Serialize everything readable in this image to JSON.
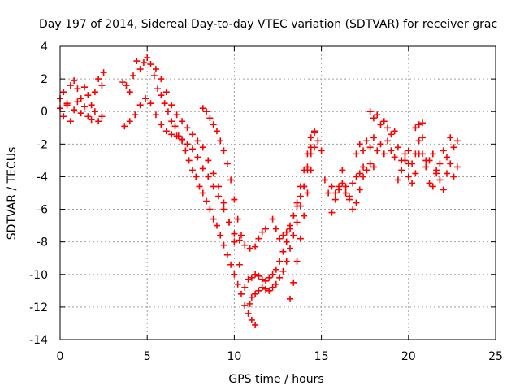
{
  "chart_data": {
    "type": "scatter",
    "title": "Day 197 of 2014, Sidereal Day-to-day VTEC variation (SDTVAR) for receiver grac",
    "xlabel": "GPS time / hours",
    "ylabel": "SDTVAR / TECUs",
    "xlim": [
      0,
      25
    ],
    "ylim": [
      -14,
      4
    ],
    "xticks": [
      0,
      5,
      10,
      15,
      20,
      25
    ],
    "yticks": [
      -14,
      -12,
      -10,
      -8,
      -6,
      -4,
      -2,
      0,
      2,
      4
    ],
    "grid": true,
    "legend": "none",
    "marker": "plus",
    "color": "#ff0000",
    "series": [
      {
        "x": [
          0.0,
          0.2,
          0.4,
          0.6,
          0.8,
          1.0,
          1.2,
          1.4,
          1.6,
          1.8,
          2.0,
          2.2,
          2.4,
          2.5
        ],
        "y": [
          0.8,
          1.2,
          0.5,
          1.6,
          1.9,
          1.4,
          0.8,
          1.5,
          1.0,
          0.4,
          1.2,
          2.0,
          1.6,
          2.4
        ]
      },
      {
        "x": [
          0.0,
          0.2,
          0.4,
          0.6,
          0.8,
          1.0,
          1.2,
          1.4,
          1.6,
          1.8,
          2.0,
          2.2,
          2.4
        ],
        "y": [
          0.2,
          -0.3,
          0.4,
          -0.6,
          0.1,
          0.6,
          -0.1,
          0.3,
          -0.3,
          -0.5,
          0.0,
          -0.6,
          -0.3
        ]
      },
      {
        "x": [
          3.6,
          3.8,
          4.0,
          4.2,
          4.4,
          4.6,
          4.8,
          5.0,
          5.2,
          5.4,
          5.6,
          5.8,
          6.0,
          6.2,
          6.4,
          6.6,
          6.8,
          7.0,
          7.2,
          7.4,
          7.6,
          7.8,
          8.0,
          8.2,
          8.4,
          8.6,
          8.8,
          9.0,
          9.2,
          9.4,
          9.6,
          9.8,
          10.0,
          10.2,
          10.4,
          10.6,
          10.8,
          11.0,
          11.2
        ],
        "y": [
          1.8,
          1.6,
          1.2,
          2.2,
          3.1,
          2.6,
          3.0,
          3.3,
          2.9,
          2.2,
          1.4,
          1.0,
          0.5,
          0.0,
          -0.6,
          -0.9,
          -1.5,
          -1.8,
          -2.4,
          -3.0,
          -3.6,
          -4.0,
          -4.6,
          -5.0,
          -5.5,
          -6.0,
          -6.6,
          -7.0,
          -7.6,
          -8.2,
          -8.8,
          -9.4,
          -10.0,
          -10.6,
          -11.2,
          -11.9,
          -12.4,
          -12.8,
          -13.1
        ]
      },
      {
        "x": [
          3.7,
          4.0,
          4.3,
          4.6,
          4.9,
          5.2,
          5.5,
          5.8,
          6.1,
          6.4,
          6.7,
          7.0,
          7.3,
          7.6,
          7.9,
          8.2,
          8.5,
          8.8,
          9.1,
          9.4,
          9.7,
          10.0,
          10.3,
          10.6,
          10.9,
          11.2
        ],
        "y": [
          -0.9,
          -0.6,
          -0.2,
          0.4,
          0.8,
          0.5,
          -0.2,
          -0.8,
          -1.2,
          -1.4,
          -1.5,
          -1.7,
          -2.0,
          -2.3,
          -2.8,
          -3.5,
          -4.0,
          -4.6,
          -5.2,
          -6.0,
          -6.8,
          -7.5,
          -7.9,
          -8.2,
          -8.4,
          -8.3
        ]
      },
      {
        "x": [
          5.5,
          5.8,
          6.1,
          6.4,
          6.7,
          7.0,
          7.3,
          7.6,
          7.9,
          8.2,
          8.5,
          8.8,
          9.1,
          9.4,
          9.7,
          10.0,
          10.3,
          10.6,
          10.9
        ],
        "y": [
          2.6,
          2.0,
          1.2,
          0.4,
          -0.2,
          -0.6,
          -1.0,
          -1.4,
          -1.8,
          -2.2,
          -3.0,
          -3.8,
          -4.6,
          -5.6,
          -6.8,
          -8.0,
          -9.4,
          -10.8,
          -11.8
        ]
      },
      {
        "x": [
          8.2,
          8.4,
          8.6,
          8.8,
          9.0,
          9.2,
          9.4,
          9.6,
          9.8,
          10.0,
          10.2,
          10.4
        ],
        "y": [
          0.2,
          0.0,
          -0.4,
          -0.8,
          -1.2,
          -1.8,
          -2.4,
          -3.2,
          -4.2,
          -5.4,
          -6.6,
          -7.6
        ]
      },
      {
        "x": [
          10.8,
          11.0,
          11.2,
          11.4,
          11.6,
          11.8,
          12.0,
          12.2,
          12.4,
          12.6,
          12.8,
          13.0,
          13.2,
          13.4,
          13.6,
          13.8,
          14.0,
          14.2,
          14.4,
          14.6
        ],
        "y": [
          -10.3,
          -10.2,
          -10.0,
          -10.1,
          -10.3,
          -10.4,
          -10.2,
          -10.0,
          -9.7,
          -9.2,
          -8.6,
          -8.0,
          -7.2,
          -6.4,
          -5.6,
          -4.6,
          -3.6,
          -2.6,
          -1.6,
          -1.3
        ]
      },
      {
        "x": [
          11.0,
          11.2,
          11.4,
          11.6,
          11.8,
          12.0,
          12.2,
          12.4,
          12.6,
          12.8,
          13.0,
          13.2,
          13.4,
          13.6,
          13.8,
          14.0,
          14.2,
          14.4,
          14.6
        ],
        "y": [
          -11.4,
          -11.2,
          -11.0,
          -10.8,
          -10.9,
          -11.0,
          -10.8,
          -10.6,
          -10.2,
          -9.8,
          -9.2,
          -8.4,
          -7.6,
          -6.8,
          -5.8,
          -4.6,
          -3.4,
          -2.2,
          -1.2
        ]
      },
      {
        "x": [
          11.4,
          11.6,
          11.8
        ],
        "y": [
          -7.8,
          -7.4,
          -7.2
        ]
      },
      {
        "x": [
          12.2,
          12.4,
          12.6,
          12.8,
          13.0,
          13.2,
          13.4,
          13.6,
          13.8,
          14.0,
          14.2,
          14.4
        ],
        "y": [
          -6.6,
          -7.2,
          -7.8,
          -7.6,
          -7.4,
          -7.0,
          -6.4,
          -5.8,
          -5.2,
          -4.6,
          -3.6,
          -2.6
        ]
      },
      {
        "x": [
          13.2,
          13.4,
          13.6,
          13.8,
          14.0,
          14.2,
          14.4,
          14.6
        ],
        "y": [
          -11.5,
          -10.5,
          -9.2,
          -7.8,
          -6.4,
          -5.0,
          -3.6,
          -2.2
        ]
      },
      {
        "x": [
          14.8,
          15.0,
          15.2
        ],
        "y": [
          -1.8,
          -2.4,
          -4.2
        ]
      },
      {
        "x": [
          15.4,
          15.6,
          15.8,
          16.0,
          16.2,
          16.4,
          16.6,
          16.8,
          17.0,
          17.2,
          17.4,
          17.6
        ],
        "y": [
          -5.0,
          -6.2,
          -5.4,
          -4.8,
          -3.6,
          -4.6,
          -5.4,
          -6.0,
          -5.6,
          -4.8,
          -4.0,
          -3.6
        ]
      },
      {
        "x": [
          15.6,
          15.8,
          16.0,
          16.2,
          16.4,
          16.6,
          16.8,
          17.0,
          17.2,
          17.4,
          17.6,
          17.8,
          18.0
        ],
        "y": [
          -4.6,
          -5.0,
          -4.6,
          -4.4,
          -5.0,
          -5.2,
          -4.4,
          -4.0,
          -3.8,
          -3.4,
          -3.6,
          -3.2,
          -3.4
        ]
      },
      {
        "x": [
          17.0,
          17.2,
          17.4,
          17.6,
          17.8,
          18.0,
          18.2,
          18.4,
          18.6,
          18.8,
          19.0,
          19.2,
          19.4,
          19.6,
          19.8,
          20.0
        ],
        "y": [
          -2.6,
          -2.0,
          -2.4,
          -1.8,
          -2.2,
          -1.6,
          -2.4,
          -2.0,
          -2.6,
          -1.8,
          -2.4,
          -2.8,
          -2.2,
          -3.0,
          -2.6,
          -3.2
        ]
      },
      {
        "x": [
          17.8,
          18.0,
          18.2,
          18.4,
          18.6,
          18.8,
          19.0,
          19.2
        ],
        "y": [
          0.0,
          -0.4,
          -0.2,
          -0.8,
          -0.6,
          -1.0,
          -1.4,
          -1.2
        ]
      },
      {
        "x": [
          19.4,
          19.6,
          19.8,
          20.0,
          20.2,
          20.4,
          20.6,
          20.8,
          21.0,
          21.2,
          21.4,
          21.6,
          21.8,
          22.0,
          22.2,
          22.4,
          22.6,
          22.8
        ],
        "y": [
          -4.2,
          -3.6,
          -3.0,
          -4.0,
          -4.4,
          -3.8,
          -2.6,
          -1.6,
          -3.0,
          -4.4,
          -4.6,
          -3.8,
          -4.2,
          -4.8,
          -3.8,
          -3.2,
          -4.0,
          -3.4
        ]
      },
      {
        "x": [
          20.0,
          20.2,
          20.4,
          20.6,
          20.8,
          21.0,
          21.2,
          21.4,
          21.6,
          21.8,
          22.0,
          22.2,
          22.4,
          22.6,
          22.8
        ],
        "y": [
          -2.4,
          -3.2,
          -2.6,
          -1.8,
          -2.6,
          -3.4,
          -3.0,
          -2.6,
          -3.6,
          -3.2,
          -2.4,
          -2.8,
          -1.6,
          -2.2,
          -1.8
        ]
      },
      {
        "x": [
          20.4,
          20.6,
          20.8
        ],
        "y": [
          -1.0,
          -0.8,
          -0.7
        ]
      }
    ]
  }
}
